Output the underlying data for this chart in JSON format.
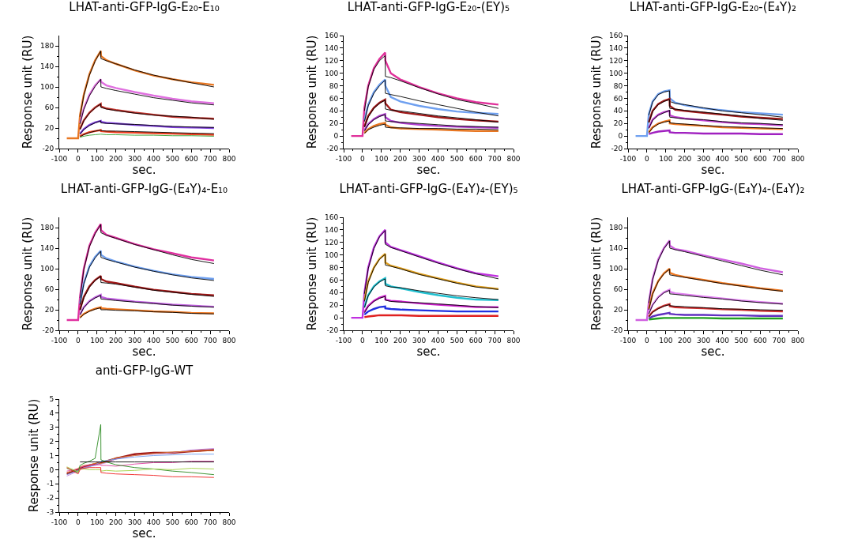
{
  "chart_data": [
    {
      "type": "line",
      "title": "LHAT-anti-GFP-IgG-E₂₀-E₁₀",
      "xlabel": "sec.",
      "ylabel": "Response unit (RU)",
      "x": [
        -60,
        0,
        10,
        30,
        60,
        90,
        120,
        121,
        150,
        200,
        300,
        400,
        500,
        600,
        720
      ],
      "xlim": [
        -100,
        800
      ],
      "xticks": [
        -100,
        0,
        100,
        200,
        300,
        400,
        500,
        600,
        700,
        800
      ],
      "ylim": [
        -20,
        200
      ],
      "yticks": [
        -20,
        20,
        60,
        100,
        140,
        180
      ],
      "grid": false,
      "legend": false,
      "marker": "none",
      "line_style": "solid",
      "series": [
        {
          "color": "#e87722",
          "values": [
            0,
            0,
            45,
            85,
            125,
            152,
            170,
            160,
            152,
            145,
            132,
            122,
            115,
            109,
            104
          ]
        },
        {
          "color": "#000000",
          "values": [
            null,
            null,
            42,
            83,
            123,
            150,
            170,
            155,
            151,
            145,
            133,
            123,
            115,
            108,
            100
          ]
        },
        {
          "color": "#e070e0",
          "values": [
            null,
            null,
            30,
            58,
            85,
            103,
            115,
            110,
            103,
            98,
            90,
            83,
            77,
            72,
            68
          ]
        },
        {
          "color": "#000000",
          "values": [
            null,
            null,
            28,
            56,
            83,
            101,
            115,
            100,
            97,
            93,
            86,
            79,
            74,
            69,
            65
          ]
        },
        {
          "color": "#c0302a",
          "values": [
            null,
            null,
            18,
            35,
            50,
            60,
            67,
            62,
            58,
            55,
            50,
            46,
            42,
            40,
            38
          ]
        },
        {
          "color": "#000000",
          "values": [
            null,
            null,
            17,
            34,
            49,
            59,
            67,
            60,
            57,
            54,
            49,
            45,
            43,
            41,
            37
          ]
        },
        {
          "color": "#8040e0",
          "values": [
            null,
            null,
            9,
            18,
            26,
            31,
            34,
            32,
            30,
            29,
            26,
            24,
            22,
            21,
            20
          ]
        },
        {
          "color": "#000000",
          "values": [
            null,
            null,
            8,
            17,
            25,
            30,
            34,
            30,
            29,
            28,
            27,
            25,
            23,
            22,
            21
          ]
        },
        {
          "color": "#f04020",
          "values": [
            null,
            null,
            4,
            8,
            12,
            14,
            16,
            14,
            13,
            12,
            11,
            10,
            9,
            8,
            7
          ]
        },
        {
          "color": "#000000",
          "values": [
            null,
            null,
            3,
            7,
            11,
            14,
            16,
            15,
            14,
            14,
            13,
            12,
            11,
            10,
            9
          ]
        },
        {
          "color": "#30a030",
          "values": [
            null,
            null,
            2,
            4,
            6,
            7,
            8,
            8,
            7,
            7,
            6,
            6,
            5,
            5,
            4
          ]
        }
      ]
    },
    {
      "type": "line",
      "title": "LHAT-anti-GFP-IgG-E₂₀-(EY)₅",
      "xlabel": "sec.",
      "ylabel": "Response unit (RU)",
      "x": [
        -60,
        0,
        10,
        30,
        60,
        90,
        120,
        121,
        150,
        200,
        300,
        400,
        500,
        600,
        720
      ],
      "xlim": [
        -100,
        800
      ],
      "xticks": [
        -100,
        0,
        100,
        200,
        300,
        400,
        500,
        600,
        700,
        800
      ],
      "ylim": [
        -20,
        160
      ],
      "yticks": [
        -20,
        0,
        20,
        40,
        60,
        80,
        100,
        120,
        140,
        160
      ],
      "grid": false,
      "legend": false,
      "marker": "none",
      "line_style": "solid",
      "series": [
        {
          "color": "#e0309a",
          "values": [
            0,
            0,
            45,
            80,
            108,
            123,
            133,
            120,
            100,
            90,
            78,
            68,
            60,
            54,
            50
          ]
        },
        {
          "color": "#000000",
          "values": [
            null,
            null,
            40,
            78,
            106,
            120,
            128,
            95,
            93,
            88,
            77,
            67,
            58,
            52,
            44
          ]
        },
        {
          "color": "#6fa0f0",
          "values": [
            null,
            null,
            25,
            50,
            70,
            82,
            90,
            80,
            62,
            55,
            48,
            43,
            39,
            37,
            35
          ]
        },
        {
          "color": "#000000",
          "values": [
            null,
            null,
            23,
            48,
            68,
            80,
            89,
            68,
            66,
            63,
            56,
            50,
            44,
            38,
            32
          ]
        },
        {
          "color": "#a01818",
          "values": [
            null,
            null,
            15,
            32,
            45,
            53,
            58,
            52,
            42,
            38,
            34,
            30,
            27,
            25,
            23
          ]
        },
        {
          "color": "#000000",
          "values": [
            null,
            null,
            14,
            30,
            44,
            52,
            57,
            43,
            41,
            40,
            36,
            32,
            29,
            26,
            22
          ]
        },
        {
          "color": "#b040d0",
          "values": [
            null,
            null,
            9,
            19,
            27,
            32,
            35,
            30,
            24,
            21,
            18,
            16,
            15,
            14,
            13
          ]
        },
        {
          "color": "#000000",
          "values": [
            null,
            null,
            8,
            18,
            26,
            31,
            34,
            24,
            23,
            22,
            20,
            18,
            16,
            15,
            14
          ]
        },
        {
          "color": "#e87722",
          "values": [
            null,
            null,
            5,
            11,
            16,
            19,
            21,
            18,
            14,
            12,
            11,
            10,
            9,
            8,
            8
          ]
        },
        {
          "color": "#000000",
          "values": [
            null,
            null,
            4,
            10,
            14,
            17,
            19,
            14,
            13,
            13,
            12,
            12,
            11,
            11,
            10
          ]
        }
      ]
    },
    {
      "type": "line",
      "title": "LHAT-anti-GFP-IgG-E₂₀-(E₄Y)₂",
      "xlabel": "sec.",
      "ylabel": "Response unit (RU)",
      "x": [
        -60,
        0,
        10,
        30,
        60,
        90,
        120,
        121,
        150,
        200,
        300,
        400,
        500,
        600,
        720
      ],
      "xlim": [
        -100,
        800
      ],
      "xticks": [
        -100,
        0,
        100,
        200,
        300,
        400,
        500,
        600,
        700,
        800
      ],
      "ylim": [
        -20,
        160
      ],
      "yticks": [
        -20,
        0,
        20,
        40,
        60,
        80,
        100,
        120,
        140,
        160
      ],
      "grid": false,
      "legend": false,
      "marker": "none",
      "line_style": "solid",
      "series": [
        {
          "color": "#6fa0f0",
          "values": [
            0,
            0,
            35,
            55,
            67,
            71,
            73,
            60,
            53,
            49,
            44,
            41,
            38,
            36,
            34
          ]
        },
        {
          "color": "#000000",
          "values": [
            null,
            null,
            33,
            54,
            66,
            70,
            72,
            55,
            52,
            50,
            45,
            40,
            37,
            34,
            30
          ]
        },
        {
          "color": "#a01818",
          "values": [
            null,
            null,
            22,
            40,
            51,
            56,
            59,
            48,
            42,
            40,
            37,
            34,
            31,
            29,
            27
          ]
        },
        {
          "color": "#000000",
          "values": [
            null,
            null,
            21,
            39,
            50,
            55,
            58,
            44,
            43,
            41,
            38,
            35,
            32,
            28,
            25
          ]
        },
        {
          "color": "#c040d0",
          "values": [
            null,
            null,
            13,
            26,
            34,
            38,
            40,
            33,
            30,
            28,
            25,
            22,
            20,
            19,
            17
          ]
        },
        {
          "color": "#000000",
          "values": [
            null,
            null,
            12,
            25,
            33,
            37,
            41,
            30,
            29,
            27,
            26,
            23,
            21,
            20,
            18
          ]
        },
        {
          "color": "#f07820",
          "values": [
            null,
            null,
            6,
            14,
            20,
            23,
            25,
            20,
            19,
            18,
            16,
            14,
            13,
            12,
            11
          ]
        },
        {
          "color": "#000000",
          "values": [
            null,
            null,
            5,
            13,
            19,
            22,
            24,
            21,
            20,
            19,
            17,
            15,
            14,
            13,
            12
          ]
        },
        {
          "color": "#a020c0",
          "values": [
            null,
            null,
            3,
            5,
            7,
            8,
            9,
            6,
            5,
            5,
            4,
            4,
            4,
            3,
            3
          ]
        }
      ]
    },
    {
      "type": "line",
      "title": "LHAT-anti-GFP-IgG-(E₄Y)₄-E₁₀",
      "xlabel": "sec.",
      "ylabel": "Response unit (RU)",
      "x": [
        -60,
        0,
        10,
        30,
        60,
        90,
        120,
        121,
        150,
        200,
        300,
        400,
        500,
        600,
        720
      ],
      "xlim": [
        -100,
        800
      ],
      "xticks": [
        -100,
        0,
        100,
        200,
        300,
        400,
        500,
        600,
        700,
        800
      ],
      "ylim": [
        -20,
        200
      ],
      "yticks": [
        -20,
        20,
        60,
        100,
        140,
        180
      ],
      "grid": false,
      "legend": false,
      "marker": "none",
      "line_style": "solid",
      "series": [
        {
          "color": "#e030a0",
          "values": [
            0,
            0,
            45,
            100,
            145,
            170,
            187,
            175,
            166,
            160,
            148,
            138,
            130,
            122,
            116
          ]
        },
        {
          "color": "#000000",
          "values": [
            null,
            null,
            43,
            98,
            143,
            168,
            186,
            170,
            165,
            159,
            147,
            137,
            127,
            118,
            110
          ]
        },
        {
          "color": "#6fa0f0",
          "values": [
            null,
            null,
            32,
            72,
            105,
            123,
            135,
            127,
            120,
            114,
            104,
            96,
            89,
            84,
            80
          ]
        },
        {
          "color": "#000000",
          "values": [
            null,
            null,
            30,
            70,
            103,
            121,
            134,
            122,
            118,
            113,
            103,
            95,
            88,
            82,
            77
          ]
        },
        {
          "color": "#a01818",
          "values": [
            null,
            null,
            20,
            45,
            66,
            78,
            86,
            80,
            75,
            72,
            65,
            59,
            55,
            51,
            48
          ]
        },
        {
          "color": "#000000",
          "values": [
            null,
            null,
            19,
            43,
            64,
            77,
            85,
            73,
            72,
            70,
            64,
            58,
            54,
            50,
            46
          ]
        },
        {
          "color": "#c060e0",
          "values": [
            null,
            null,
            11,
            25,
            37,
            44,
            49,
            45,
            42,
            40,
            36,
            33,
            30,
            28,
            26
          ]
        },
        {
          "color": "#000000",
          "values": [
            null,
            null,
            10,
            24,
            36,
            43,
            48,
            41,
            40,
            38,
            35,
            32,
            29,
            27,
            25
          ]
        },
        {
          "color": "#f07820",
          "values": [
            null,
            null,
            5,
            12,
            18,
            22,
            25,
            23,
            22,
            21,
            19,
            17,
            16,
            14,
            13
          ]
        },
        {
          "color": "#000000",
          "values": [
            null,
            null,
            4,
            11,
            17,
            21,
            24,
            20,
            20,
            19,
            18,
            16,
            15,
            13,
            12
          ]
        }
      ]
    },
    {
      "type": "line",
      "title": "LHAT-anti-GFP-IgG-(E₄Y)₄-(EY)₅",
      "xlabel": "sec.",
      "ylabel": "Response unit (RU)",
      "x": [
        -60,
        0,
        10,
        30,
        60,
        90,
        120,
        121,
        150,
        200,
        300,
        400,
        500,
        600,
        720
      ],
      "xlim": [
        -100,
        800
      ],
      "xticks": [
        -100,
        0,
        100,
        200,
        300,
        400,
        500,
        600,
        700,
        800
      ],
      "ylim": [
        -20,
        160
      ],
      "yticks": [
        -20,
        0,
        20,
        40,
        60,
        80,
        100,
        120,
        140,
        160
      ],
      "grid": false,
      "legend": false,
      "marker": "none",
      "line_style": "solid",
      "series": [
        {
          "color": "#c030e0",
          "values": [
            0,
            0,
            40,
            80,
            112,
            130,
            140,
            120,
            113,
            108,
            98,
            88,
            79,
            71,
            66
          ]
        },
        {
          "color": "#000000",
          "values": [
            null,
            null,
            38,
            78,
            110,
            129,
            139,
            117,
            112,
            107,
            97,
            87,
            78,
            70,
            62
          ]
        },
        {
          "color": "#e0a020",
          "values": [
            null,
            null,
            28,
            58,
            80,
            94,
            102,
            88,
            83,
            79,
            70,
            63,
            56,
            50,
            46
          ]
        },
        {
          "color": "#000000",
          "values": [
            null,
            null,
            26,
            56,
            79,
            93,
            101,
            84,
            82,
            78,
            69,
            62,
            55,
            49,
            45
          ]
        },
        {
          "color": "#20c0d0",
          "values": [
            null,
            null,
            17,
            36,
            50,
            58,
            63,
            54,
            50,
            47,
            41,
            36,
            32,
            29,
            28
          ]
        },
        {
          "color": "#000000",
          "values": [
            null,
            null,
            16,
            35,
            49,
            57,
            62,
            51,
            49,
            48,
            43,
            39,
            35,
            32,
            29
          ]
        },
        {
          "color": "#d020d0",
          "values": [
            null,
            null,
            9,
            19,
            27,
            32,
            35,
            29,
            27,
            26,
            23,
            21,
            19,
            17,
            17
          ]
        },
        {
          "color": "#000000",
          "values": [
            null,
            null,
            8,
            18,
            26,
            31,
            34,
            28,
            26,
            25,
            24,
            22,
            20,
            18,
            16
          ]
        },
        {
          "color": "#2030e0",
          "values": [
            null,
            null,
            5,
            10,
            14,
            17,
            18,
            15,
            14,
            13,
            12,
            11,
            10,
            10,
            10
          ]
        },
        {
          "color": "#e02020",
          "values": [
            null,
            null,
            1,
            2,
            3,
            4,
            4,
            4,
            4,
            4,
            3,
            3,
            3,
            3,
            3
          ]
        }
      ]
    },
    {
      "type": "line",
      "title": "LHAT-anti-GFP-IgG-(E₄Y)₄-(E₄Y)₂",
      "xlabel": "sec.",
      "ylabel": "Response unit (RU)",
      "x": [
        -60,
        0,
        10,
        30,
        60,
        90,
        120,
        121,
        150,
        200,
        300,
        400,
        500,
        600,
        720
      ],
      "xlim": [
        -100,
        800
      ],
      "xticks": [
        -100,
        0,
        100,
        200,
        300,
        400,
        500,
        600,
        700,
        800
      ],
      "ylim": [
        -20,
        200
      ],
      "yticks": [
        -20,
        20,
        60,
        100,
        140,
        180
      ],
      "grid": false,
      "legend": false,
      "marker": "none",
      "line_style": "solid",
      "series": [
        {
          "color": "#d060e0",
          "values": [
            0,
            0,
            35,
            80,
            118,
            140,
            155,
            145,
            138,
            135,
            126,
            118,
            110,
            101,
            93
          ]
        },
        {
          "color": "#000000",
          "values": [
            null,
            null,
            33,
            78,
            116,
            139,
            154,
            140,
            137,
            133,
            124,
            115,
            106,
            97,
            88
          ]
        },
        {
          "color": "#f07820",
          "values": [
            null,
            null,
            22,
            52,
            76,
            91,
            100,
            92,
            88,
            84,
            78,
            72,
            67,
            62,
            57
          ]
        },
        {
          "color": "#000000",
          "values": [
            null,
            null,
            20,
            50,
            75,
            90,
            99,
            88,
            86,
            83,
            77,
            71,
            66,
            61,
            56
          ]
        },
        {
          "color": "#e080f0",
          "values": [
            null,
            null,
            13,
            30,
            45,
            54,
            59,
            55,
            52,
            50,
            46,
            42,
            38,
            35,
            32
          ]
        },
        {
          "color": "#000000",
          "values": [
            null,
            null,
            12,
            29,
            44,
            53,
            58,
            51,
            50,
            48,
            44,
            41,
            37,
            34,
            31
          ]
        },
        {
          "color": "#d03030",
          "values": [
            null,
            null,
            7,
            16,
            23,
            28,
            31,
            27,
            25,
            24,
            23,
            21,
            20,
            18,
            17
          ]
        },
        {
          "color": "#000000",
          "values": [
            null,
            null,
            6,
            15,
            22,
            27,
            30,
            28,
            27,
            26,
            24,
            22,
            21,
            20,
            19
          ]
        },
        {
          "color": "#6030c0",
          "values": [
            null,
            null,
            3,
            7,
            10,
            12,
            14,
            12,
            11,
            10,
            10,
            9,
            9,
            8,
            8
          ]
        },
        {
          "color": "#20a020",
          "values": [
            null,
            null,
            1,
            2,
            3,
            4,
            4,
            4,
            4,
            4,
            4,
            3,
            3,
            3,
            3
          ]
        }
      ]
    },
    {
      "type": "line",
      "title": "anti-GFP-IgG-WT",
      "xlabel": "sec.",
      "ylabel": "Response unit (RU)",
      "x": [
        -60,
        0,
        10,
        30,
        60,
        90,
        120,
        121,
        150,
        200,
        300,
        400,
        500,
        600,
        720
      ],
      "xlim": [
        -100,
        800
      ],
      "xticks": [
        -100,
        0,
        100,
        200,
        300,
        400,
        500,
        600,
        700,
        800
      ],
      "ylim": [
        -3,
        5
      ],
      "yticks": [
        -3,
        -2,
        -1,
        0,
        1,
        2,
        3,
        4,
        5
      ],
      "grid": false,
      "legend": false,
      "marker": "none",
      "line_style": "solid",
      "series": [
        {
          "color": "#a01818",
          "values": [
            -0.3,
            0,
            0.1,
            0.2,
            0.3,
            0.4,
            0.5,
            0.5,
            0.6,
            0.8,
            1.1,
            1.2,
            1.2,
            1.3,
            1.4
          ]
        },
        {
          "color": "#c080e0",
          "values": [
            -0.45,
            -0.1,
            0,
            0.15,
            0.25,
            0.3,
            0.4,
            0.4,
            0.5,
            0.75,
            1.0,
            1.1,
            1.2,
            1.4,
            1.5
          ]
        },
        {
          "color": "#e08030",
          "values": [
            -0.2,
            0.1,
            0.2,
            0.3,
            0.35,
            0.45,
            0.45,
            0.45,
            0.55,
            0.85,
            1.0,
            1.15,
            1.25,
            1.3,
            1.35
          ]
        },
        {
          "color": "#6fa0f0",
          "values": [
            -0.35,
            -0.05,
            0.05,
            0.1,
            0.2,
            0.35,
            0.55,
            0.6,
            0.65,
            0.75,
            0.9,
            1.0,
            1.05,
            1.1,
            1.1
          ]
        },
        {
          "color": "#e040a0",
          "values": [
            -0.1,
            0.05,
            0.15,
            0.25,
            0.35,
            0.35,
            0.35,
            0.3,
            0.3,
            0.25,
            0.4,
            0.5,
            0.5,
            0.6,
            0.6
          ]
        },
        {
          "color": "#2a8a20",
          "values": [
            0.1,
            -0.2,
            0.3,
            0.45,
            0.6,
            0.8,
            3.2,
            0.7,
            0.55,
            0.35,
            0.15,
            0.05,
            -0.1,
            -0.2,
            -0.35
          ]
        },
        {
          "color": "#a0d040",
          "values": [
            0.2,
            -0.15,
            0.05,
            0.05,
            0.0,
            0.0,
            0.0,
            -0.1,
            -0.05,
            -0.1,
            -0.05,
            0.05,
            0.0,
            0.1,
            0.05
          ]
        },
        {
          "color": "#f02020",
          "values": [
            0.15,
            -0.3,
            0.0,
            0.1,
            0.15,
            0.15,
            0.15,
            -0.2,
            -0.25,
            -0.3,
            -0.35,
            -0.4,
            -0.5,
            -0.5,
            -0.55
          ]
        },
        {
          "color": "#000000",
          "values": [
            null,
            null,
            0.55,
            0.55,
            0.55,
            0.55,
            0.55,
            0.55,
            0.55,
            0.55,
            0.55,
            0.55,
            0.55,
            0.55,
            0.55
          ]
        }
      ]
    }
  ]
}
